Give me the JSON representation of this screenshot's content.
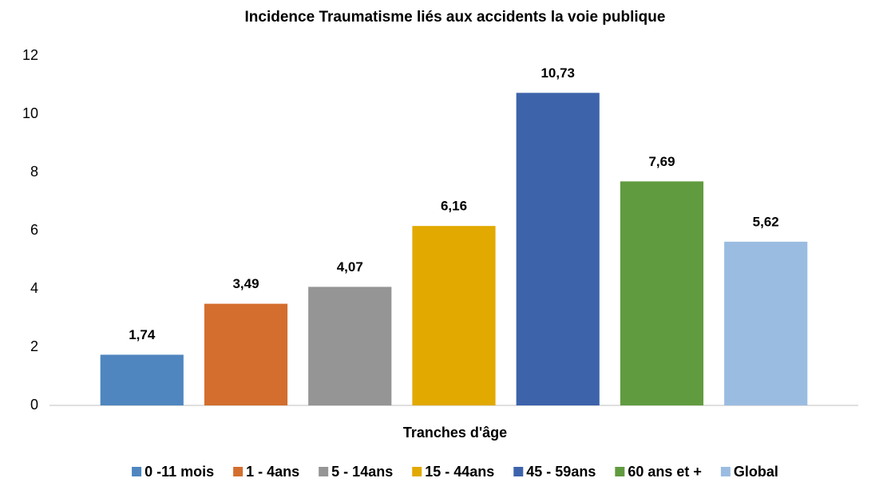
{
  "chart_data": {
    "type": "bar",
    "title": "Incidence Traumatisme liés aux accidents la voie publique",
    "x_label": "Tranches d'âge",
    "categories": [
      null
    ],
    "series": [
      {
        "name": "0 -11 mois",
        "color": "#4f86bf",
        "values": [
          1.74
        ],
        "value_labels": [
          "1,74"
        ]
      },
      {
        "name": "1 - 4ans",
        "color": "#d36e2e",
        "values": [
          3.49
        ],
        "value_labels": [
          "3,49"
        ]
      },
      {
        "name": "5 - 14ans",
        "color": "#959595",
        "values": [
          4.07
        ],
        "value_labels": [
          "4,07"
        ]
      },
      {
        "name": "15 - 44ans",
        "color": "#e2a900",
        "values": [
          6.16
        ],
        "value_labels": [
          "6,16"
        ]
      },
      {
        "name": "45 - 59ans",
        "color": "#3d63ab",
        "values": [
          10.73
        ],
        "value_labels": [
          "10,73"
        ]
      },
      {
        "name": "60 ans et +",
        "color": "#619b3f",
        "values": [
          7.69
        ],
        "value_labels": [
          "7,69"
        ]
      },
      {
        "name": "Global",
        "color": "#9bbce1",
        "values": [
          5.62
        ],
        "value_labels": [
          "5,62"
        ]
      }
    ],
    "ylim": [
      0,
      12
    ],
    "yticks": [
      0,
      2,
      4,
      6,
      8,
      10,
      12
    ],
    "grid": false,
    "legend": "bottom"
  }
}
